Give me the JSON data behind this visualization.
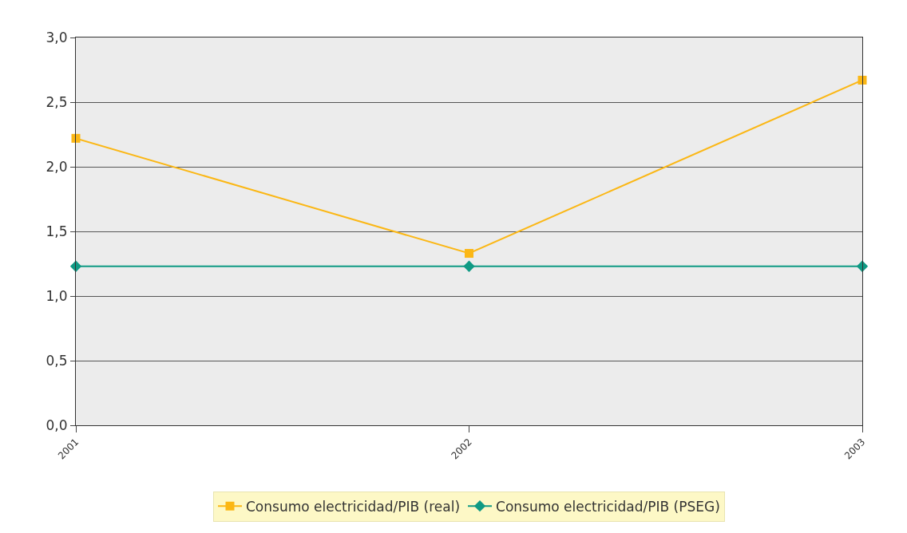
{
  "chart_data": {
    "type": "line",
    "x": [
      2001,
      2002,
      2003
    ],
    "series": [
      {
        "name": "Consumo electricidad/PIB (real)",
        "color": "#fbb715",
        "values": [
          2.22,
          1.33,
          2.67
        ],
        "marker": "square"
      },
      {
        "name": "Consumo electricidad/PIB (PSEG)",
        "color": "#0f9a84",
        "values": [
          1.23,
          1.23,
          1.23
        ],
        "marker": "diamond"
      }
    ],
    "xlim": [
      2001,
      2003
    ],
    "xticks": [
      2001,
      2002,
      2003
    ],
    "ylim": [
      0,
      3
    ],
    "yticks": [
      {
        "value": 0,
        "label": "0,0"
      },
      {
        "value": 0.5,
        "label": "0,5"
      },
      {
        "value": 1,
        "label": "1,0"
      },
      {
        "value": 1.5,
        "label": "1,5"
      },
      {
        "value": 2,
        "label": "2,0"
      },
      {
        "value": 2.5,
        "label": "2,5"
      },
      {
        "value": 3,
        "label": "3,0"
      }
    ],
    "grid": "y",
    "legend": "bottom",
    "line_style": "solid"
  }
}
